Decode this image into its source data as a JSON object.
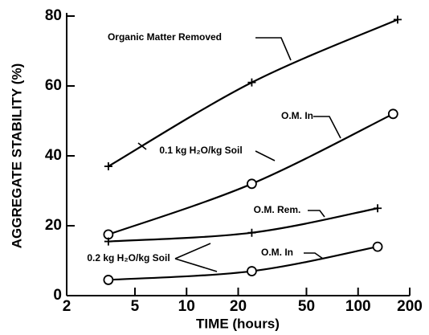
{
  "chart_data": {
    "type": "line",
    "xlabel": "TIME (hours)",
    "ylabel": "AGGREGATE STABILITY (%)",
    "xscale": "log",
    "xlim": [
      2,
      200
    ],
    "xticks": [
      2,
      5,
      10,
      20,
      50,
      100,
      200
    ],
    "ylim": [
      0,
      80
    ],
    "yticks": [
      0,
      20,
      40,
      60,
      80
    ],
    "series": [
      {
        "name": "Organic Matter Removed",
        "color": "#000000",
        "marker": "+",
        "x": [
          3.5,
          24,
          170
        ],
        "values": [
          37,
          61,
          79
        ]
      },
      {
        "name": "O.M. In",
        "color": "#000000",
        "marker": "o",
        "x": [
          3.5,
          24,
          160
        ],
        "values": [
          17.5,
          32,
          52
        ]
      },
      {
        "name": "O.M. Rem.",
        "color": "#000000",
        "marker": "+",
        "x": [
          3.5,
          24,
          130
        ],
        "values": [
          15.5,
          18,
          25
        ]
      },
      {
        "name": "O.M. In",
        "color": "#000000",
        "marker": "o",
        "x": [
          3.5,
          24,
          130
        ],
        "values": [
          4.5,
          7,
          14
        ]
      }
    ],
    "annotations": [
      "0.1 kg H₂O/kg Soil",
      "0.2 kg H₂O/kg Soil"
    ]
  }
}
